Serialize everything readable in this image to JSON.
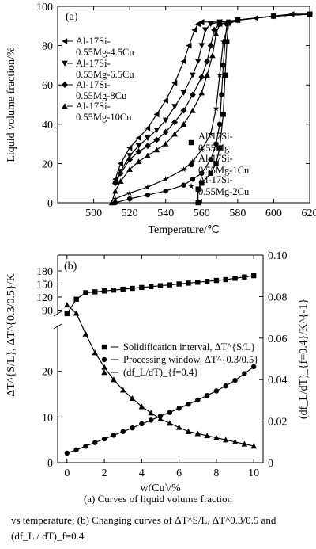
{
  "chart_data": [
    {
      "type": "line",
      "panel_label": "(a)",
      "xlabel": "Temperature/℃",
      "ylabel": "Liquid volume fraction/%",
      "xlim": [
        480,
        620
      ],
      "ylim": [
        0,
        100
      ],
      "xticks": [
        500,
        520,
        540,
        560,
        580,
        600,
        620
      ],
      "yticks": [
        0,
        20,
        40,
        60,
        80,
        100
      ],
      "series": [
        {
          "name": "Al-17Si-0.55Mg-4.5Cu",
          "marker": "triangle-left",
          "x": [
            512,
            515,
            520,
            525,
            530,
            535,
            540,
            545,
            550,
            553,
            556,
            558,
            560,
            570,
            580,
            590,
            600,
            610,
            620
          ],
          "y": [
            12,
            20,
            28,
            33,
            38,
            45,
            52,
            61,
            72,
            80,
            88,
            91,
            92,
            92,
            93,
            94,
            95,
            96,
            96
          ]
        },
        {
          "name": "Al-17Si-0.55Mg-6.5Cu",
          "marker": "triangle-down",
          "x": [
            512,
            515,
            520,
            525,
            530,
            535,
            540,
            545,
            550,
            555,
            558,
            560,
            562,
            565,
            570,
            580,
            600,
            620
          ],
          "y": [
            10,
            16,
            24,
            29,
            33,
            37,
            42,
            49,
            56,
            65,
            72,
            80,
            88,
            91,
            92,
            93,
            95,
            96
          ]
        },
        {
          "name": "Al-17Si-0.55Mg-8Cu",
          "marker": "diamond",
          "x": [
            512,
            515,
            520,
            525,
            530,
            535,
            540,
            545,
            550,
            555,
            560,
            563,
            565,
            567,
            570,
            580,
            600,
            620
          ],
          "y": [
            10,
            15,
            22,
            26,
            29,
            32,
            36,
            41,
            47,
            55,
            64,
            72,
            80,
            88,
            91,
            93,
            95,
            96
          ]
        },
        {
          "name": "Al-17Si-0.55Mg-10Cu",
          "marker": "triangle-up",
          "x": [
            510,
            512,
            515,
            520,
            525,
            530,
            535,
            540,
            545,
            550,
            555,
            560,
            563,
            566,
            568,
            570,
            580,
            600,
            620
          ],
          "y": [
            0,
            6,
            11,
            17,
            21,
            24,
            27,
            30,
            35,
            40,
            47,
            56,
            65,
            75,
            86,
            91,
            93,
            95,
            96
          ]
        },
        {
          "name": "Al-17Si-0.55Mg",
          "marker": "square",
          "x": [
            558,
            558,
            560,
            565,
            568,
            570,
            572,
            573,
            574,
            575,
            580,
            600,
            620
          ],
          "y": [
            0,
            7,
            10,
            15,
            20,
            28,
            45,
            65,
            82,
            92,
            93,
            95,
            96
          ]
        },
        {
          "name": "Al-17Si-0.55Mg-1Cu",
          "marker": "circle",
          "x": [
            512,
            520,
            530,
            540,
            550,
            555,
            560,
            565,
            568,
            570,
            571,
            572,
            573,
            574,
            580,
            600,
            620
          ],
          "y": [
            0,
            2,
            4,
            6,
            9,
            12,
            15,
            22,
            30,
            40,
            55,
            70,
            82,
            91,
            93,
            95,
            96
          ]
        },
        {
          "name": "Al-17Si-0.55Mg-2Cu",
          "marker": "star",
          "x": [
            512,
            520,
            530,
            540,
            550,
            555,
            560,
            565,
            568,
            570,
            572,
            575,
            580,
            600,
            620
          ],
          "y": [
            2,
            5,
            8,
            12,
            17,
            21,
            27,
            35,
            48,
            65,
            82,
            91,
            93,
            95,
            96
          ]
        }
      ]
    },
    {
      "type": "line",
      "panel_label": "(b)",
      "xlabel": "w(Cu)/%",
      "ylabel_left": "ΔT^{S/L}, ΔT^{0.3/0.5}/K",
      "ylabel_right": "(df_L/dT)_{f=0.4}/K^{-1}",
      "xlim": [
        -0.5,
        10.5
      ],
      "xticks": [
        0,
        2,
        4,
        6,
        8,
        10
      ],
      "ylim_left_upper": [
        80,
        180
      ],
      "yticks_left_upper": [
        90,
        120,
        150,
        180
      ],
      "ylim_left_lower": [
        0,
        30
      ],
      "yticks_left_lower": [
        0,
        10,
        20
      ],
      "ylim_right": [
        0,
        0.1
      ],
      "yticks_right": [
        "0",
        "0.02",
        "0.04",
        "0.06",
        "0.08",
        "0.10"
      ],
      "series": [
        {
          "name": "Solidification interval, ΔT^{S/L}",
          "axis": "left-upper",
          "marker": "square",
          "x": [
            0,
            0.5,
            1,
            1.5,
            2,
            2.5,
            3,
            3.5,
            4,
            4.5,
            5,
            5.5,
            6,
            6.5,
            7,
            7.5,
            8,
            8.5,
            9,
            9.5,
            10
          ],
          "y": [
            82,
            115,
            130,
            132,
            134,
            136,
            138,
            140,
            142,
            144,
            146,
            148,
            150,
            152,
            154,
            156,
            158,
            160,
            163,
            166,
            169
          ]
        },
        {
          "name": "Processing window, ΔT^{0.3/0.5}",
          "axis": "left-lower",
          "marker": "circle",
          "x": [
            0,
            0.5,
            1,
            1.5,
            2,
            2.5,
            3,
            3.5,
            4,
            4.5,
            5,
            5.5,
            6,
            6.5,
            7,
            7.5,
            8,
            8.5,
            9,
            9.5,
            10
          ],
          "y": [
            2.1,
            2.8,
            3.6,
            4.4,
            5.2,
            6.0,
            6.8,
            7.6,
            8.5,
            9.3,
            10.2,
            11.0,
            11.9,
            12.8,
            13.7,
            14.7,
            15.7,
            16.8,
            18.0,
            19.5,
            21.0
          ]
        },
        {
          "name": "(df_L/dT)_{f=0.4}",
          "axis": "right",
          "marker": "triangle-up",
          "x": [
            0,
            0.5,
            1,
            1.5,
            2,
            2.5,
            3,
            3.5,
            4,
            4.5,
            5,
            5.5,
            6,
            6.5,
            7,
            7.5,
            8,
            8.5,
            9,
            9.5,
            10
          ],
          "y": [
            0.076,
            0.072,
            0.062,
            0.053,
            0.046,
            0.04,
            0.035,
            0.031,
            0.027,
            0.024,
            0.021,
            0.019,
            0.017,
            0.015,
            0.014,
            0.013,
            0.012,
            0.011,
            0.01,
            0.009,
            0.008
          ]
        }
      ]
    }
  ],
  "captions": {
    "line1": "(a) Curves of liquid volume fraction",
    "line2": "vs temperature; (b) Changing curves of ΔT^S/L, ΔT^0.3/0.5 and",
    "line3": "(df_L / dT)_f=0.4"
  }
}
